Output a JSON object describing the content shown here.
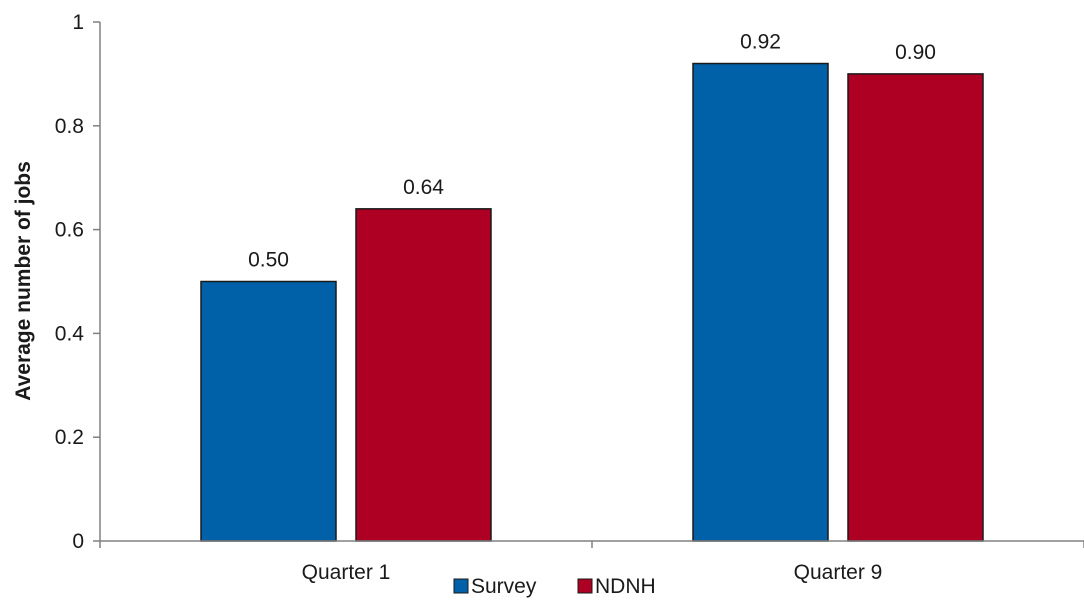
{
  "chart_data": {
    "type": "bar",
    "title": "",
    "xlabel": "",
    "ylabel": "Average number of jobs",
    "categories": [
      "Quarter 1",
      "Quarter 9"
    ],
    "series": [
      {
        "name": "Survey",
        "color": "#0061a8",
        "values": [
          0.5,
          0.92
        ],
        "labels": [
          "0.50",
          "0.92"
        ]
      },
      {
        "name": "NDNH",
        "color": "#ad0022",
        "values": [
          0.64,
          0.9
        ],
        "labels": [
          "0.64",
          "0.90"
        ]
      }
    ],
    "ylim": [
      0,
      1
    ],
    "yticks": [
      0,
      0.2,
      0.4,
      0.6,
      0.8,
      1
    ],
    "ytick_labels": [
      "0",
      "0.2",
      "0.4",
      "0.6",
      "0.8",
      "1"
    ],
    "grid": false,
    "legend": "bottom-center"
  }
}
